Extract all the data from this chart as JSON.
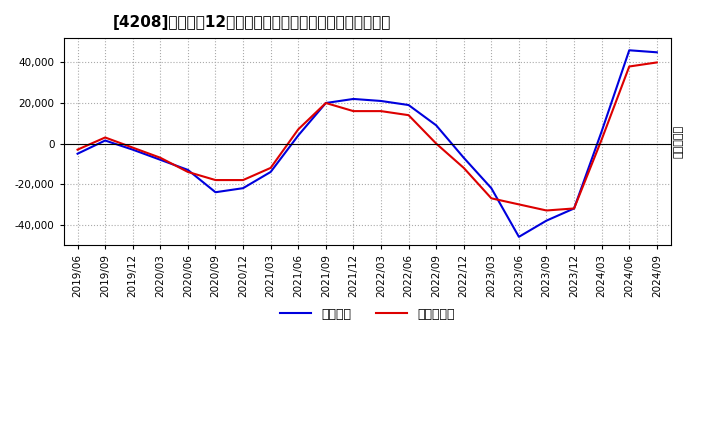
{
  "title": "[4208]　利益だ12か月移動合計の対前年同期増減額の推移",
  "ylabel": "（百万円）",
  "ylim": [
    -50000,
    52000
  ],
  "yticks": [
    -40000,
    -20000,
    0,
    20000,
    40000
  ],
  "legend_labels": [
    "経常利益",
    "当期純利益"
  ],
  "line_colors": [
    "#0000dd",
    "#dd0000"
  ],
  "background_color": "#ffffff",
  "plot_bg_color": "#ffffff",
  "dates": [
    "2019/06",
    "2019/09",
    "2019/12",
    "2020/03",
    "2020/06",
    "2020/09",
    "2020/12",
    "2021/03",
    "2021/06",
    "2021/09",
    "2021/12",
    "2022/03",
    "2022/06",
    "2022/09",
    "2022/12",
    "2023/03",
    "2023/06",
    "2023/09",
    "2023/12",
    "2024/03",
    "2024/06",
    "2024/09"
  ],
  "keijo_rieki": [
    -5000,
    1500,
    -3000,
    -8000,
    -13000,
    -24000,
    -22000,
    -14000,
    4000,
    20000,
    22000,
    21000,
    19000,
    9000,
    -7000,
    -22000,
    -46000,
    -38000,
    -32000,
    6000,
    46000,
    45000
  ],
  "touki_jun_rieki": [
    -3000,
    3000,
    -2000,
    -7000,
    -14000,
    -18000,
    -18000,
    -12000,
    7000,
    20000,
    16000,
    16000,
    14000,
    0,
    -12000,
    -27000,
    -30000,
    -33000,
    -32000,
    2000,
    38000,
    40000
  ]
}
